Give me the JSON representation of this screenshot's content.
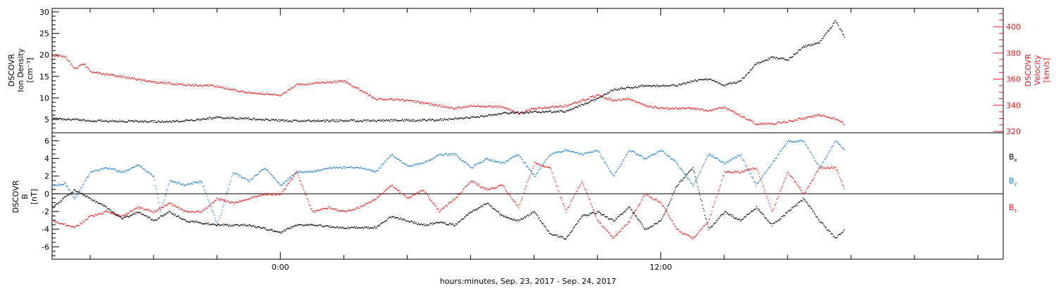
{
  "colors": {
    "black": "#000000",
    "red": "#e8191a",
    "blue": "#1e7fd0",
    "background": "#ffffff"
  },
  "x_axis": {
    "label": "hours:minutes, Sep. 23, 2017 - Sep. 24, 2017",
    "range_hours": [
      -7.2,
      22.8
    ],
    "ticks": [
      {
        "t": 0,
        "label": "0:00"
      },
      {
        "t": 12,
        "label": "12:00"
      }
    ],
    "minor_tick_step_hours": 2
  },
  "chart_data": [
    {
      "type": "scatter",
      "panel": "plasma",
      "ylabel_left": [
        "DSCOVR",
        "Ion Density",
        "[cm⁻³]"
      ],
      "ylabel_right": [
        "DSCOVR",
        "Velocity",
        "[km/s]"
      ],
      "ylim_left": [
        1.9,
        30.8
      ],
      "ylim_right": [
        319,
        414
      ],
      "left_ticks": [
        "5",
        "10",
        "15",
        "20",
        "25",
        "30"
      ],
      "right_ticks": [
        "320",
        "340",
        "360",
        "380",
        "400"
      ],
      "series": [
        {
          "color": "#000000",
          "axis": "left",
          "x": [
            -7.2,
            -6.5,
            -6.0,
            -5.0,
            -4.0,
            -3.8,
            -3.0,
            -2.0,
            -1.0,
            0.0,
            1.0,
            2.0,
            3.0,
            4.0,
            5.0,
            5.5,
            6.0,
            6.5,
            7.0,
            8.0,
            9.0,
            9.5,
            10.0,
            10.5,
            11.0,
            11.5,
            12.0,
            12.5,
            13.0,
            13.5,
            14.0,
            14.5,
            15.0,
            15.5,
            16.0,
            16.5,
            17.0,
            17.5,
            17.8
          ],
          "values": [
            5.3,
            5.0,
            4.8,
            4.7,
            4.6,
            4.5,
            4.8,
            5.5,
            5.3,
            4.8,
            4.7,
            4.8,
            4.8,
            4.9,
            5.0,
            5.3,
            5.5,
            6.0,
            6.5,
            6.8,
            7.0,
            8.5,
            10.0,
            12.0,
            12.5,
            13.0,
            12.8,
            13.0,
            14.0,
            14.5,
            13.0,
            14.0,
            18.0,
            19.5,
            19.0,
            22.0,
            23.0,
            28.0,
            24.0
          ]
        },
        {
          "color": "#e8191a",
          "axis": "right",
          "x": [
            -7.2,
            -6.8,
            -6.5,
            -6.2,
            -6.0,
            -5.0,
            -4.0,
            -3.0,
            -2.0,
            -1.5,
            -1.0,
            0.0,
            0.5,
            1.0,
            1.5,
            2.0,
            3.0,
            3.5,
            4.0,
            5.0,
            5.5,
            6.0,
            7.0,
            7.5,
            8.0,
            9.0,
            10.0,
            10.5,
            11.0,
            11.5,
            12.0,
            13.0,
            13.5,
            14.0,
            15.0,
            15.5,
            16.0,
            17.0,
            17.5,
            17.8
          ],
          "values": [
            378,
            378,
            368,
            372,
            366,
            362,
            358,
            356,
            355,
            352,
            350,
            348,
            356,
            357,
            358,
            359,
            345,
            345,
            344,
            340,
            338,
            340,
            339,
            334,
            338,
            340,
            348,
            344,
            345,
            340,
            338,
            338,
            336,
            339,
            326,
            326,
            328,
            333,
            330,
            326
          ]
        }
      ]
    },
    {
      "type": "scatter",
      "panel": "magnetic_field",
      "ylabel_left": [
        "DSCOVR",
        "B",
        "[nT]"
      ],
      "ylim": [
        -7.4,
        6.9
      ],
      "zero_line": 0,
      "left_ticks": [
        "-6",
        "-4",
        "-2",
        "0",
        "2",
        "4",
        "6"
      ],
      "series": [
        {
          "name": "Bx",
          "color": "#000000",
          "x": [
            -7.2,
            -6.5,
            -6.0,
            -5.5,
            -5.0,
            -4.5,
            -4.0,
            -3.5,
            -3.0,
            -2.0,
            -1.0,
            0.0,
            0.5,
            1.0,
            2.0,
            3.0,
            3.5,
            4.0,
            4.5,
            5.0,
            5.5,
            6.0,
            6.5,
            7.0,
            7.5,
            8.0,
            8.5,
            9.0,
            9.5,
            10.0,
            10.5,
            11.0,
            11.5,
            12.0,
            12.5,
            13.0,
            13.5,
            14.0,
            14.5,
            15.0,
            15.5,
            16.0,
            16.5,
            17.0,
            17.5,
            17.8
          ],
          "values": [
            -1.5,
            0.5,
            -0.5,
            -1.5,
            -2.8,
            -2.0,
            -3.0,
            -2.0,
            -3.0,
            -3.5,
            -3.5,
            -4.3,
            -3.5,
            -3.5,
            -3.8,
            -3.8,
            -2.5,
            -3.0,
            -3.5,
            -3.2,
            -3.5,
            -2.0,
            -1.0,
            -2.5,
            -3.0,
            -2.0,
            -4.5,
            -5.0,
            -2.5,
            -2.0,
            -3.0,
            -1.5,
            -4.0,
            -3.0,
            1.0,
            3.0,
            -4.0,
            -2.0,
            -3.0,
            -1.5,
            -3.5,
            -2.0,
            -0.5,
            -3.0,
            -5.0,
            -4.0
          ]
        },
        {
          "name": "By",
          "color": "#1e7fd0",
          "x": [
            -7.2,
            -6.8,
            -6.5,
            -6.0,
            -5.5,
            -5.0,
            -4.5,
            -4.0,
            -3.8,
            -3.5,
            -3.0,
            -2.5,
            -2.0,
            -1.5,
            -1.0,
            -0.5,
            0.0,
            0.5,
            1.0,
            1.5,
            2.0,
            2.5,
            3.0,
            3.5,
            4.0,
            4.5,
            5.0,
            5.5,
            6.0,
            6.5,
            7.0,
            7.5,
            8.0,
            8.5,
            9.0,
            9.5,
            10.0,
            10.5,
            11.0,
            11.5,
            12.0,
            12.5,
            13.0,
            13.5,
            14.0,
            14.5,
            15.0,
            15.5,
            16.0,
            16.5,
            17.0,
            17.5,
            17.8
          ],
          "values": [
            1.0,
            1.2,
            -0.5,
            2.5,
            3.0,
            2.5,
            3.3,
            2.0,
            -2.0,
            1.5,
            1.0,
            1.5,
            -3.5,
            2.5,
            1.5,
            3.0,
            1.0,
            2.5,
            2.5,
            3.0,
            3.0,
            3.0,
            2.5,
            4.5,
            3.2,
            3.5,
            4.5,
            4.5,
            3.0,
            4.0,
            3.5,
            4.5,
            2.0,
            4.5,
            5.0,
            4.5,
            5.0,
            2.0,
            5.0,
            4.0,
            5.0,
            3.5,
            1.0,
            4.5,
            3.5,
            4.5,
            1.0,
            3.5,
            6.0,
            6.0,
            3.0,
            6.0,
            5.0
          ]
        },
        {
          "name": "Bz",
          "color": "#e8191a",
          "x": [
            -7.2,
            -6.5,
            -6.0,
            -5.5,
            -5.0,
            -4.5,
            -4.0,
            -3.5,
            -3.0,
            -2.5,
            -2.0,
            -1.5,
            -1.0,
            -0.5,
            0.0,
            0.5,
            1.0,
            1.5,
            2.0,
            2.5,
            3.0,
            3.5,
            4.0,
            4.5,
            5.0,
            5.5,
            6.0,
            6.5,
            7.0,
            7.5,
            8.0,
            8.5,
            9.0,
            9.5,
            10.0,
            10.5,
            11.0,
            11.5,
            12.0,
            12.5,
            13.0,
            13.5,
            14.0,
            14.5,
            15.0,
            15.5,
            16.0,
            16.5,
            17.0,
            17.5,
            17.8
          ],
          "values": [
            -3.0,
            -3.8,
            -2.5,
            -2.0,
            -2.5,
            -1.5,
            -2.0,
            -1.0,
            -2.0,
            -2.0,
            -0.5,
            -1.0,
            -0.5,
            0.0,
            0.0,
            2.5,
            -2.0,
            -1.5,
            -2.0,
            -1.5,
            -0.5,
            1.0,
            -0.5,
            0.5,
            -2.0,
            -0.5,
            1.5,
            0.5,
            1.0,
            -1.5,
            3.5,
            3.0,
            -2.0,
            1.5,
            -3.0,
            -5.0,
            -3.0,
            0.0,
            -1.0,
            -4.0,
            -5.0,
            -3.0,
            2.5,
            2.5,
            3.0,
            -2.0,
            2.5,
            0.0,
            3.0,
            3.0,
            0.5
          ]
        }
      ]
    }
  ],
  "legend": [
    {
      "label": "B",
      "sub": "x",
      "color": "#000000"
    },
    {
      "label": "B",
      "sub": "y",
      "color": "#1e7fd0"
    },
    {
      "label": "B",
      "sub": "z",
      "color": "#e8191a"
    }
  ]
}
